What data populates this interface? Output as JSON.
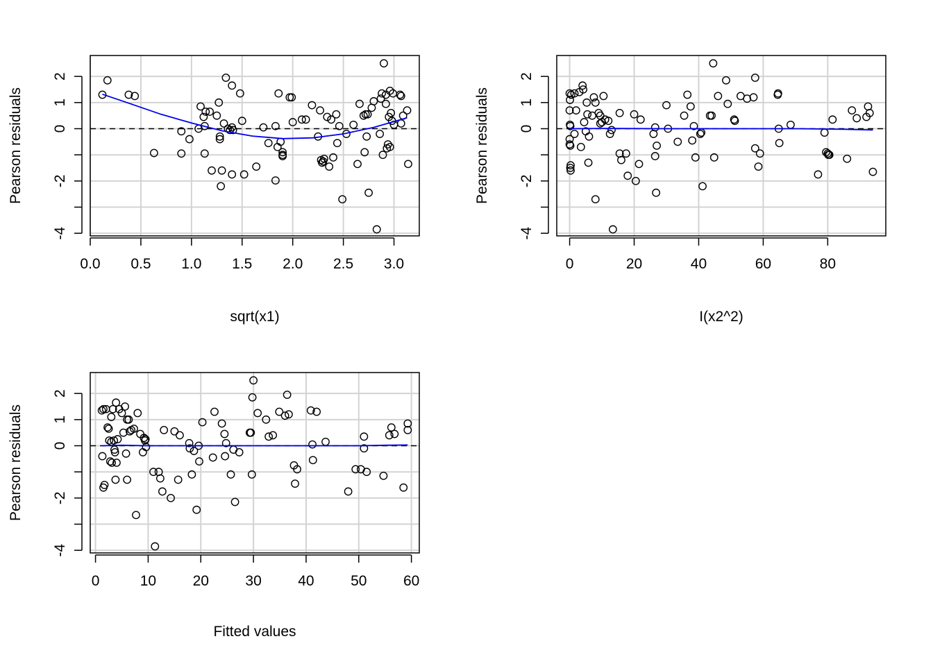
{
  "chart_data": [
    {
      "type": "scatter",
      "title": "",
      "xlabel": "sqrt(x1)",
      "ylabel": "Pearson residuals",
      "xlim": [
        0.0,
        3.25
      ],
      "ylim": [
        -4.1,
        2.8
      ],
      "xticks": [
        "0.0",
        "0.5",
        "1.0",
        "1.5",
        "2.0",
        "2.5",
        "3.0"
      ],
      "xtick_values": [
        0.0,
        0.5,
        1.0,
        1.5,
        2.0,
        2.5,
        3.0
      ],
      "yticks": [
        "-4",
        "-2",
        "0",
        "1",
        "2"
      ],
      "ytick_values": [
        -4,
        -2,
        0,
        1,
        2
      ],
      "ygrid_values": [
        -4,
        -3,
        -2,
        -1,
        0,
        1,
        2
      ],
      "grid": true,
      "reference_line": {
        "y": 0,
        "style": "dashed",
        "color": "#000000"
      },
      "smooth_color": "#0000ee",
      "smooth": [
        [
          0.12,
          1.32
        ],
        [
          0.4,
          0.95
        ],
        [
          0.7,
          0.55
        ],
        [
          1.0,
          0.22
        ],
        [
          1.3,
          -0.08
        ],
        [
          1.6,
          -0.28
        ],
        [
          1.9,
          -0.38
        ],
        [
          2.2,
          -0.35
        ],
        [
          2.5,
          -0.2
        ],
        [
          2.8,
          0.05
        ],
        [
          3.13,
          0.42
        ]
      ],
      "points": [
        [
          0.12,
          1.3
        ],
        [
          0.17,
          1.85
        ],
        [
          0.38,
          1.3
        ],
        [
          0.44,
          1.25
        ],
        [
          0.63,
          -0.93
        ],
        [
          0.9,
          -0.1
        ],
        [
          0.9,
          -0.95
        ],
        [
          0.98,
          -0.4
        ],
        [
          1.07,
          0.0
        ],
        [
          1.09,
          0.85
        ],
        [
          1.12,
          0.45
        ],
        [
          1.14,
          0.65
        ],
        [
          1.13,
          0.1
        ],
        [
          1.13,
          -0.95
        ],
        [
          1.18,
          0.65
        ],
        [
          1.2,
          -1.6
        ],
        [
          1.25,
          0.5
        ],
        [
          1.27,
          1.0
        ],
        [
          1.28,
          -0.3
        ],
        [
          1.28,
          -0.4
        ],
        [
          1.29,
          -2.2
        ],
        [
          1.3,
          -1.6
        ],
        [
          1.32,
          0.2
        ],
        [
          1.34,
          1.95
        ],
        [
          1.36,
          0.0
        ],
        [
          1.38,
          -0.05
        ],
        [
          1.4,
          1.65
        ],
        [
          1.4,
          0.05
        ],
        [
          1.41,
          -0.05
        ],
        [
          1.4,
          -1.75
        ],
        [
          1.48,
          1.35
        ],
        [
          1.5,
          0.3
        ],
        [
          1.52,
          -1.75
        ],
        [
          1.64,
          -1.45
        ],
        [
          1.71,
          0.05
        ],
        [
          1.76,
          -0.55
        ],
        [
          1.83,
          0.1
        ],
        [
          1.83,
          -1.98
        ],
        [
          1.85,
          -0.7
        ],
        [
          1.86,
          1.35
        ],
        [
          1.88,
          -0.5
        ],
        [
          1.9,
          -0.9
        ],
        [
          1.9,
          -1.05
        ],
        [
          1.9,
          -1.0
        ],
        [
          1.97,
          1.2
        ],
        [
          1.99,
          1.2
        ],
        [
          2.0,
          0.25
        ],
        [
          2.09,
          0.35
        ],
        [
          2.13,
          0.35
        ],
        [
          2.19,
          0.9
        ],
        [
          2.25,
          -0.3
        ],
        [
          2.27,
          0.7
        ],
        [
          2.28,
          -1.2
        ],
        [
          2.29,
          -1.3
        ],
        [
          2.3,
          -1.25
        ],
        [
          2.31,
          -1.15
        ],
        [
          2.34,
          0.45
        ],
        [
          2.36,
          -1.45
        ],
        [
          2.38,
          0.35
        ],
        [
          2.4,
          -1.1
        ],
        [
          2.43,
          0.55
        ],
        [
          2.44,
          -0.55
        ],
        [
          2.46,
          0.1
        ],
        [
          2.49,
          -2.7
        ],
        [
          2.53,
          -0.2
        ],
        [
          2.6,
          0.15
        ],
        [
          2.64,
          -1.35
        ],
        [
          2.66,
          0.95
        ],
        [
          2.7,
          0.5
        ],
        [
          2.71,
          -0.9
        ],
        [
          2.72,
          0.55
        ],
        [
          2.73,
          -0.3
        ],
        [
          2.74,
          0.55
        ],
        [
          2.75,
          -2.45
        ],
        [
          2.78,
          0.8
        ],
        [
          2.8,
          1.05
        ],
        [
          2.83,
          -3.85
        ],
        [
          2.86,
          -0.2
        ],
        [
          2.87,
          1.15
        ],
        [
          2.88,
          1.35
        ],
        [
          2.89,
          -1.0
        ],
        [
          2.9,
          2.5
        ],
        [
          2.92,
          1.3
        ],
        [
          2.92,
          0.95
        ],
        [
          2.93,
          -0.75
        ],
        [
          2.94,
          -0.6
        ],
        [
          2.95,
          0.45
        ],
        [
          2.96,
          1.45
        ],
        [
          2.96,
          -0.7
        ],
        [
          2.97,
          0.6
        ],
        [
          2.98,
          0.3
        ],
        [
          2.99,
          1.35
        ],
        [
          3.0,
          0.15
        ],
        [
          3.06,
          1.3
        ],
        [
          3.07,
          1.25
        ],
        [
          3.07,
          0.2
        ],
        [
          3.09,
          0.5
        ],
        [
          3.13,
          0.7
        ],
        [
          3.14,
          -1.35
        ]
      ]
    },
    {
      "type": "scatter",
      "title": "",
      "xlabel": "I(x2^2)",
      "ylabel": "Pearson residuals",
      "xlim": [
        -4,
        98
      ],
      "ylim": [
        -4.1,
        2.8
      ],
      "xticks": [
        "0",
        "20",
        "40",
        "60",
        "80"
      ],
      "xtick_values": [
        0,
        20,
        40,
        60,
        80
      ],
      "yticks": [
        "-4",
        "-2",
        "0",
        "1",
        "2"
      ],
      "ytick_values": [
        -4,
        -2,
        0,
        1,
        2
      ],
      "ygrid_values": [
        -4,
        -3,
        -2,
        -1,
        0,
        1,
        2
      ],
      "grid": true,
      "reference_line": {
        "y": 0,
        "style": "dashed",
        "color": "#000000"
      },
      "smooth_color": "#0000ee",
      "smooth": [
        [
          0.0,
          0.0
        ],
        [
          10,
          0.01
        ],
        [
          30,
          0.0
        ],
        [
          50,
          0.0
        ],
        [
          70,
          0.0
        ],
        [
          85,
          -0.02
        ],
        [
          94,
          -0.05
        ]
      ],
      "points": [
        [
          0.0,
          1.35
        ],
        [
          0.1,
          1.1
        ],
        [
          0.0,
          0.7
        ],
        [
          0.1,
          0.15
        ],
        [
          0.2,
          0.1
        ],
        [
          0.0,
          -0.4
        ],
        [
          0.0,
          -0.6
        ],
        [
          0.2,
          -0.65
        ],
        [
          0.3,
          -1.4
        ],
        [
          0.2,
          -1.5
        ],
        [
          0.3,
          -1.6
        ],
        [
          0.5,
          1.3
        ],
        [
          1.5,
          1.35
        ],
        [
          1.5,
          -0.2
        ],
        [
          2.0,
          0.7
        ],
        [
          3.0,
          1.4
        ],
        [
          4.0,
          1.65
        ],
        [
          4.2,
          1.5
        ],
        [
          3.5,
          -0.7
        ],
        [
          4.5,
          0.25
        ],
        [
          5.0,
          -0.1
        ],
        [
          5.3,
          1.0
        ],
        [
          5.5,
          0.55
        ],
        [
          6.0,
          -0.3
        ],
        [
          5.8,
          -1.3
        ],
        [
          7.0,
          0.5
        ],
        [
          7.5,
          1.2
        ],
        [
          8.0,
          1.0
        ],
        [
          8.0,
          -2.7
        ],
        [
          9.0,
          0.6
        ],
        [
          9.5,
          0.5
        ],
        [
          9.5,
          0.2
        ],
        [
          10.0,
          0.25
        ],
        [
          10.5,
          1.25
        ],
        [
          11.0,
          0.35
        ],
        [
          12.0,
          0.3
        ],
        [
          12.5,
          -0.2
        ],
        [
          13.0,
          -0.05
        ],
        [
          13.4,
          -3.85
        ],
        [
          15.5,
          0.6
        ],
        [
          15.5,
          -0.95
        ],
        [
          16.0,
          -1.2
        ],
        [
          17.5,
          -0.95
        ],
        [
          18.0,
          -1.8
        ],
        [
          20.0,
          0.55
        ],
        [
          20.5,
          -2.0
        ],
        [
          21.5,
          -1.35
        ],
        [
          22.0,
          0.35
        ],
        [
          26.0,
          -0.2
        ],
        [
          26.5,
          0.05
        ],
        [
          26.5,
          -1.05
        ],
        [
          27.0,
          -0.65
        ],
        [
          26.8,
          -2.45
        ],
        [
          30.0,
          0.9
        ],
        [
          30.5,
          0.0
        ],
        [
          33.5,
          -0.5
        ],
        [
          35.5,
          0.5
        ],
        [
          36.5,
          1.3
        ],
        [
          37.5,
          0.85
        ],
        [
          38.0,
          -0.45
        ],
        [
          38.5,
          0.1
        ],
        [
          39.0,
          -1.1
        ],
        [
          40.5,
          -0.2
        ],
        [
          40.8,
          -0.15
        ],
        [
          41.2,
          -2.2
        ],
        [
          43.5,
          0.5
        ],
        [
          44.0,
          0.5
        ],
        [
          44.5,
          2.5
        ],
        [
          44.8,
          -1.1
        ],
        [
          46.0,
          1.25
        ],
        [
          48.5,
          1.85
        ],
        [
          49.0,
          0.95
        ],
        [
          51.0,
          0.35
        ],
        [
          51.2,
          0.3
        ],
        [
          53.0,
          1.25
        ],
        [
          55.0,
          1.15
        ],
        [
          57.0,
          1.2
        ],
        [
          57.5,
          1.95
        ],
        [
          57.5,
          -0.75
        ],
        [
          58.5,
          -1.45
        ],
        [
          59.0,
          -0.95
        ],
        [
          64.5,
          1.3
        ],
        [
          64.6,
          1.35
        ],
        [
          64.8,
          0.0
        ],
        [
          65.0,
          -0.55
        ],
        [
          68.5,
          0.15
        ],
        [
          77.0,
          -1.75
        ],
        [
          79.0,
          -0.15
        ],
        [
          79.5,
          -0.9
        ],
        [
          80.0,
          -0.95
        ],
        [
          80.2,
          -1.0
        ],
        [
          80.5,
          -1.0
        ],
        [
          81.5,
          0.35
        ],
        [
          86.0,
          -1.15
        ],
        [
          87.5,
          0.7
        ],
        [
          89.0,
          0.4
        ],
        [
          92.0,
          0.45
        ],
        [
          92.5,
          0.85
        ],
        [
          93.0,
          0.6
        ],
        [
          94.0,
          -1.65
        ]
      ]
    },
    {
      "type": "scatter",
      "title": "",
      "xlabel": "Fitted values",
      "ylabel": "Pearson residuals",
      "xlim": [
        -1,
        61.5
      ],
      "ylim": [
        -4.1,
        2.8
      ],
      "xticks": [
        "0",
        "10",
        "20",
        "30",
        "40",
        "50",
        "60"
      ],
      "xtick_values": [
        0,
        10,
        20,
        30,
        40,
        50,
        60
      ],
      "yticks": [
        "-4",
        "-2",
        "0",
        "1",
        "2"
      ],
      "ytick_values": [
        -4,
        -2,
        0,
        1,
        2
      ],
      "ygrid_values": [
        -4,
        -3,
        -2,
        -1,
        0,
        1,
        2
      ],
      "grid": true,
      "reference_line": {
        "y": 0,
        "style": "dashed",
        "color": "#000000"
      },
      "smooth_color": "#0000ee",
      "smooth": [
        [
          1.2,
          0.0
        ],
        [
          5,
          0.02
        ],
        [
          10,
          0.0
        ],
        [
          30,
          0.0
        ],
        [
          50,
          0.0
        ],
        [
          55,
          0.02
        ],
        [
          59.3,
          0.03
        ]
      ],
      "points": [
        [
          1.2,
          1.35
        ],
        [
          1.5,
          1.4
        ],
        [
          1.3,
          -0.4
        ],
        [
          1.5,
          -1.6
        ],
        [
          1.7,
          -1.5
        ],
        [
          2.0,
          1.4
        ],
        [
          2.3,
          0.7
        ],
        [
          2.5,
          0.65
        ],
        [
          2.6,
          0.2
        ],
        [
          2.8,
          -0.6
        ],
        [
          3.0,
          1.1
        ],
        [
          3.0,
          0.15
        ],
        [
          3.1,
          -0.65
        ],
        [
          3.3,
          1.4
        ],
        [
          3.5,
          0.2
        ],
        [
          3.6,
          -0.15
        ],
        [
          3.7,
          -0.25
        ],
        [
          3.8,
          -1.3
        ],
        [
          3.9,
          1.65
        ],
        [
          4.0,
          -0.65
        ],
        [
          4.2,
          0.25
        ],
        [
          4.5,
          1.4
        ],
        [
          5.0,
          1.25
        ],
        [
          5.3,
          0.5
        ],
        [
          5.6,
          1.5
        ],
        [
          5.8,
          -0.3
        ],
        [
          6.0,
          -1.3
        ],
        [
          6.0,
          1.0
        ],
        [
          6.3,
          1.0
        ],
        [
          6.5,
          0.55
        ],
        [
          6.8,
          0.6
        ],
        [
          7.3,
          0.65
        ],
        [
          7.7,
          -2.65
        ],
        [
          8.0,
          1.25
        ],
        [
          8.5,
          0.45
        ],
        [
          9.0,
          -0.25
        ],
        [
          9.2,
          0.3
        ],
        [
          9.4,
          0.2
        ],
        [
          9.5,
          0.25
        ],
        [
          9.6,
          -0.05
        ],
        [
          11.0,
          -1.0
        ],
        [
          11.3,
          -3.85
        ],
        [
          12.0,
          -1.0
        ],
        [
          12.3,
          -1.25
        ],
        [
          12.7,
          -1.75
        ],
        [
          13.0,
          0.6
        ],
        [
          14.3,
          -2.0
        ],
        [
          15.0,
          0.55
        ],
        [
          15.7,
          -1.3
        ],
        [
          16.0,
          0.4
        ],
        [
          17.8,
          0.1
        ],
        [
          17.9,
          -0.1
        ],
        [
          18.3,
          -1.1
        ],
        [
          18.7,
          -0.2
        ],
        [
          19.2,
          -2.45
        ],
        [
          19.6,
          0.0
        ],
        [
          19.7,
          -0.6
        ],
        [
          20.3,
          0.9
        ],
        [
          22.3,
          -0.45
        ],
        [
          22.6,
          1.3
        ],
        [
          24.0,
          0.85
        ],
        [
          24.5,
          0.45
        ],
        [
          24.6,
          -0.4
        ],
        [
          24.8,
          0.1
        ],
        [
          25.7,
          -1.1
        ],
        [
          26.2,
          -0.15
        ],
        [
          26.5,
          -2.15
        ],
        [
          27.3,
          -0.25
        ],
        [
          29.3,
          0.5
        ],
        [
          29.5,
          0.5
        ],
        [
          29.7,
          -1.1
        ],
        [
          29.8,
          1.85
        ],
        [
          30.0,
          2.5
        ],
        [
          30.8,
          1.25
        ],
        [
          32.4,
          1.0
        ],
        [
          32.9,
          0.35
        ],
        [
          33.7,
          0.4
        ],
        [
          34.9,
          1.3
        ],
        [
          36.0,
          1.15
        ],
        [
          36.4,
          1.95
        ],
        [
          36.7,
          1.2
        ],
        [
          37.7,
          -0.75
        ],
        [
          37.9,
          -1.45
        ],
        [
          38.3,
          -0.9
        ],
        [
          40.9,
          1.35
        ],
        [
          41.2,
          0.05
        ],
        [
          41.3,
          -0.55
        ],
        [
          42.0,
          1.3
        ],
        [
          43.7,
          0.15
        ],
        [
          48.0,
          -1.75
        ],
        [
          49.4,
          -0.9
        ],
        [
          50.4,
          -0.9
        ],
        [
          51.0,
          0.35
        ],
        [
          51.0,
          -0.1
        ],
        [
          51.5,
          -1.0
        ],
        [
          54.7,
          -1.15
        ],
        [
          55.8,
          0.4
        ],
        [
          56.2,
          0.7
        ],
        [
          56.8,
          0.45
        ],
        [
          58.5,
          -1.6
        ],
        [
          59.3,
          0.85
        ],
        [
          59.3,
          0.6
        ]
      ]
    }
  ]
}
